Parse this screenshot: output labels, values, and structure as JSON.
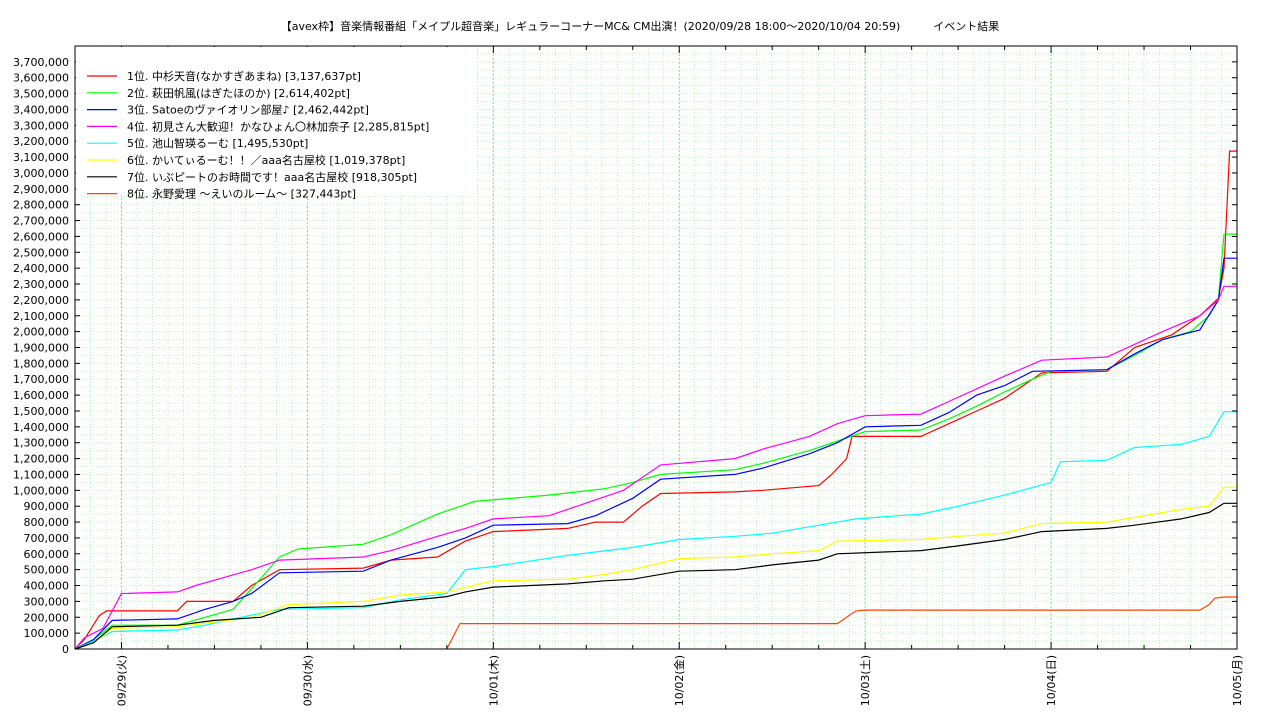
{
  "chart_data": {
    "type": "line",
    "title": "【avex枠】音楽情報番組「メイプル超音楽」レギュラーコーナーMC& CM出演！(2020/09/28 18:00〜2020/10/04 20:59)　　　イベント結果",
    "xlabel": "",
    "ylabel": "",
    "x_ticks": [
      "09/29(火)",
      "09/30(水)",
      "10/01(木)",
      "10/02(金)",
      "10/03(土)",
      "10/04(日)",
      "10/05(月)"
    ],
    "x_unit": "days since 2020/09/28 00:00",
    "xlim": [
      0.75,
      7.0
    ],
    "ylim": [
      0,
      3800000
    ],
    "y_ticks": [
      0,
      100000,
      200000,
      300000,
      400000,
      500000,
      600000,
      700000,
      800000,
      900000,
      1000000,
      1100000,
      1200000,
      1300000,
      1400000,
      1500000,
      1600000,
      1700000,
      1800000,
      1900000,
      2000000,
      2100000,
      2200000,
      2300000,
      2400000,
      2500000,
      2600000,
      2700000,
      2800000,
      2900000,
      3000000,
      3100000,
      3200000,
      3300000,
      3400000,
      3500000,
      3600000,
      3700000
    ],
    "y_tick_labels": [
      "0",
      "100,000",
      "200,000",
      "300,000",
      "400,000",
      "500,000",
      "600,000",
      "700,000",
      "800,000",
      "900,000",
      "1,000,000",
      "1,100,000",
      "1,200,000",
      "1,300,000",
      "1,400,000",
      "1,500,000",
      "1,600,000",
      "1,700,000",
      "1,800,000",
      "1,900,000",
      "2,000,000",
      "2,100,000",
      "2,200,000",
      "2,300,000",
      "2,400,000",
      "2,500,000",
      "2,600,000",
      "2,700,000",
      "2,800,000",
      "2,900,000",
      "3,000,000",
      "3,100,000",
      "3,200,000",
      "3,300,000",
      "3,400,000",
      "3,500,000",
      "3,600,000",
      "3,700,000"
    ],
    "grid": true,
    "legend_position": "top-left",
    "series": [
      {
        "name": "1位. 中杉天音(なかすぎあまね) [3,137,637pt]",
        "color": "#ff0000",
        "points": [
          [
            0.75,
            0
          ],
          [
            0.8,
            60000
          ],
          [
            0.88,
            210000
          ],
          [
            0.92,
            240000
          ],
          [
            1.3,
            240000
          ],
          [
            1.35,
            300000
          ],
          [
            1.6,
            300000
          ],
          [
            1.7,
            400000
          ],
          [
            1.85,
            500000
          ],
          [
            2.3,
            510000
          ],
          [
            2.45,
            560000
          ],
          [
            2.7,
            580000
          ],
          [
            2.85,
            680000
          ],
          [
            3.0,
            740000
          ],
          [
            3.4,
            760000
          ],
          [
            3.55,
            800000
          ],
          [
            3.7,
            800000
          ],
          [
            3.8,
            900000
          ],
          [
            3.9,
            980000
          ],
          [
            4.3,
            990000
          ],
          [
            4.45,
            1000000
          ],
          [
            4.75,
            1030000
          ],
          [
            4.82,
            1100000
          ],
          [
            4.9,
            1200000
          ],
          [
            4.93,
            1340000
          ],
          [
            5.3,
            1340000
          ],
          [
            5.45,
            1420000
          ],
          [
            5.6,
            1500000
          ],
          [
            5.75,
            1580000
          ],
          [
            5.95,
            1740000
          ],
          [
            6.3,
            1750000
          ],
          [
            6.45,
            1900000
          ],
          [
            6.65,
            1980000
          ],
          [
            6.8,
            2100000
          ],
          [
            6.9,
            2210000
          ],
          [
            6.93,
            2400000
          ],
          [
            6.96,
            3137637
          ],
          [
            7.0,
            3137637
          ]
        ]
      },
      {
        "name": "2位. 萩田帆風(はぎたほのか) [2,614,402pt]",
        "color": "#00ff00",
        "points": [
          [
            0.75,
            0
          ],
          [
            0.85,
            60000
          ],
          [
            0.95,
            150000
          ],
          [
            1.3,
            150000
          ],
          [
            1.45,
            200000
          ],
          [
            1.6,
            250000
          ],
          [
            1.7,
            380000
          ],
          [
            1.85,
            580000
          ],
          [
            1.95,
            630000
          ],
          [
            2.3,
            660000
          ],
          [
            2.45,
            720000
          ],
          [
            2.7,
            850000
          ],
          [
            2.9,
            930000
          ],
          [
            3.3,
            970000
          ],
          [
            3.45,
            990000
          ],
          [
            3.6,
            1010000
          ],
          [
            3.75,
            1050000
          ],
          [
            3.9,
            1100000
          ],
          [
            4.3,
            1130000
          ],
          [
            4.45,
            1170000
          ],
          [
            4.7,
            1250000
          ],
          [
            4.9,
            1330000
          ],
          [
            5.0,
            1370000
          ],
          [
            5.3,
            1380000
          ],
          [
            5.45,
            1450000
          ],
          [
            5.6,
            1530000
          ],
          [
            5.75,
            1620000
          ],
          [
            5.9,
            1700000
          ],
          [
            6.0,
            1750000
          ],
          [
            6.3,
            1760000
          ],
          [
            6.45,
            1850000
          ],
          [
            6.6,
            1950000
          ],
          [
            6.75,
            2000000
          ],
          [
            6.85,
            2100000
          ],
          [
            6.9,
            2200000
          ],
          [
            6.93,
            2614402
          ],
          [
            7.0,
            2614402
          ]
        ]
      },
      {
        "name": "3位. Satoeのヴァイオリン部屋♪ [2,462,442pt]",
        "color": "#0000ff",
        "points": [
          [
            0.75,
            0
          ],
          [
            0.85,
            60000
          ],
          [
            0.95,
            180000
          ],
          [
            1.3,
            190000
          ],
          [
            1.45,
            250000
          ],
          [
            1.6,
            300000
          ],
          [
            1.7,
            350000
          ],
          [
            1.85,
            480000
          ],
          [
            2.3,
            490000
          ],
          [
            2.45,
            560000
          ],
          [
            2.7,
            640000
          ],
          [
            2.85,
            700000
          ],
          [
            3.0,
            780000
          ],
          [
            3.4,
            790000
          ],
          [
            3.55,
            840000
          ],
          [
            3.75,
            950000
          ],
          [
            3.9,
            1070000
          ],
          [
            4.3,
            1100000
          ],
          [
            4.45,
            1140000
          ],
          [
            4.7,
            1230000
          ],
          [
            4.85,
            1300000
          ],
          [
            5.0,
            1400000
          ],
          [
            5.3,
            1410000
          ],
          [
            5.45,
            1490000
          ],
          [
            5.6,
            1600000
          ],
          [
            5.75,
            1660000
          ],
          [
            5.9,
            1750000
          ],
          [
            6.3,
            1760000
          ],
          [
            6.45,
            1860000
          ],
          [
            6.6,
            1950000
          ],
          [
            6.8,
            2010000
          ],
          [
            6.9,
            2200000
          ],
          [
            6.93,
            2462442
          ],
          [
            7.0,
            2462442
          ]
        ]
      },
      {
        "name": "4位. 初見さん大歓迎！かなひょん〇林加奈子 [2,285,815pt]",
        "color": "#ff00ff",
        "points": [
          [
            0.75,
            0
          ],
          [
            0.8,
            70000
          ],
          [
            0.9,
            130000
          ],
          [
            1.0,
            350000
          ],
          [
            1.3,
            360000
          ],
          [
            1.4,
            400000
          ],
          [
            1.55,
            450000
          ],
          [
            1.7,
            500000
          ],
          [
            1.85,
            560000
          ],
          [
            2.3,
            580000
          ],
          [
            2.45,
            620000
          ],
          [
            2.7,
            710000
          ],
          [
            2.85,
            760000
          ],
          [
            3.0,
            820000
          ],
          [
            3.3,
            840000
          ],
          [
            3.45,
            900000
          ],
          [
            3.7,
            1000000
          ],
          [
            3.9,
            1160000
          ],
          [
            4.3,
            1200000
          ],
          [
            4.45,
            1260000
          ],
          [
            4.7,
            1340000
          ],
          [
            4.85,
            1420000
          ],
          [
            5.0,
            1470000
          ],
          [
            5.3,
            1480000
          ],
          [
            5.45,
            1560000
          ],
          [
            5.6,
            1640000
          ],
          [
            5.75,
            1720000
          ],
          [
            5.95,
            1820000
          ],
          [
            6.3,
            1840000
          ],
          [
            6.45,
            1920000
          ],
          [
            6.6,
            2000000
          ],
          [
            6.8,
            2100000
          ],
          [
            6.9,
            2200000
          ],
          [
            6.93,
            2285815
          ],
          [
            7.0,
            2285815
          ]
        ]
      },
      {
        "name": "5位. 池山智瑛るーむ [1,495,530pt]",
        "color": "#00ffff",
        "points": [
          [
            0.75,
            0
          ],
          [
            0.85,
            50000
          ],
          [
            0.95,
            110000
          ],
          [
            1.3,
            120000
          ],
          [
            1.45,
            150000
          ],
          [
            1.6,
            190000
          ],
          [
            1.85,
            250000
          ],
          [
            2.3,
            260000
          ],
          [
            2.5,
            310000
          ],
          [
            2.75,
            350000
          ],
          [
            2.85,
            500000
          ],
          [
            3.0,
            520000
          ],
          [
            3.4,
            590000
          ],
          [
            3.75,
            640000
          ],
          [
            4.0,
            690000
          ],
          [
            4.3,
            710000
          ],
          [
            4.5,
            730000
          ],
          [
            4.75,
            780000
          ],
          [
            4.95,
            820000
          ],
          [
            5.3,
            850000
          ],
          [
            5.5,
            900000
          ],
          [
            5.75,
            970000
          ],
          [
            6.0,
            1050000
          ],
          [
            6.05,
            1180000
          ],
          [
            6.3,
            1190000
          ],
          [
            6.45,
            1270000
          ],
          [
            6.7,
            1290000
          ],
          [
            6.85,
            1340000
          ],
          [
            6.93,
            1495530
          ],
          [
            7.0,
            1495530
          ]
        ]
      },
      {
        "name": "6位. かいてぃるーむ！！／aaa名古屋校 [1,019,378pt]",
        "color": "#ffff00",
        "points": [
          [
            0.75,
            0
          ],
          [
            0.85,
            40000
          ],
          [
            0.95,
            130000
          ],
          [
            1.3,
            140000
          ],
          [
            1.5,
            170000
          ],
          [
            1.7,
            200000
          ],
          [
            1.9,
            280000
          ],
          [
            2.3,
            300000
          ],
          [
            2.5,
            340000
          ],
          [
            2.75,
            360000
          ],
          [
            3.0,
            430000
          ],
          [
            3.4,
            440000
          ],
          [
            3.6,
            470000
          ],
          [
            3.75,
            500000
          ],
          [
            4.0,
            570000
          ],
          [
            4.3,
            580000
          ],
          [
            4.5,
            600000
          ],
          [
            4.75,
            620000
          ],
          [
            4.85,
            680000
          ],
          [
            5.3,
            690000
          ],
          [
            5.5,
            710000
          ],
          [
            5.75,
            730000
          ],
          [
            5.95,
            790000
          ],
          [
            6.3,
            800000
          ],
          [
            6.45,
            830000
          ],
          [
            6.7,
            880000
          ],
          [
            6.85,
            900000
          ],
          [
            6.93,
            1019378
          ],
          [
            7.0,
            1019378
          ]
        ]
      },
      {
        "name": "7位. いぶピートのお時間です！aaa名古屋校 [918,305pt]",
        "color": "#000000",
        "points": [
          [
            0.75,
            0
          ],
          [
            0.85,
            40000
          ],
          [
            0.95,
            140000
          ],
          [
            1.3,
            150000
          ],
          [
            1.5,
            180000
          ],
          [
            1.75,
            200000
          ],
          [
            1.9,
            260000
          ],
          [
            2.3,
            270000
          ],
          [
            2.5,
            300000
          ],
          [
            2.75,
            330000
          ],
          [
            2.85,
            360000
          ],
          [
            3.0,
            390000
          ],
          [
            3.4,
            410000
          ],
          [
            3.6,
            430000
          ],
          [
            3.75,
            440000
          ],
          [
            4.0,
            490000
          ],
          [
            4.3,
            500000
          ],
          [
            4.5,
            530000
          ],
          [
            4.75,
            560000
          ],
          [
            4.85,
            600000
          ],
          [
            5.3,
            620000
          ],
          [
            5.5,
            650000
          ],
          [
            5.75,
            690000
          ],
          [
            5.95,
            740000
          ],
          [
            6.3,
            760000
          ],
          [
            6.45,
            780000
          ],
          [
            6.7,
            820000
          ],
          [
            6.85,
            860000
          ],
          [
            6.93,
            918305
          ],
          [
            7.0,
            918305
          ]
        ]
      },
      {
        "name": "8位. 永野愛理 〜えいのルーム〜 [327,443pt]",
        "color": "#ff4500",
        "points": [
          [
            2.75,
            0
          ],
          [
            2.82,
            160000
          ],
          [
            3.0,
            160000
          ],
          [
            4.85,
            160000
          ],
          [
            4.95,
            240000
          ],
          [
            5.0,
            245000
          ],
          [
            6.8,
            245000
          ],
          [
            6.85,
            280000
          ],
          [
            6.88,
            320000
          ],
          [
            6.93,
            327443
          ],
          [
            7.0,
            327443
          ]
        ]
      }
    ]
  }
}
